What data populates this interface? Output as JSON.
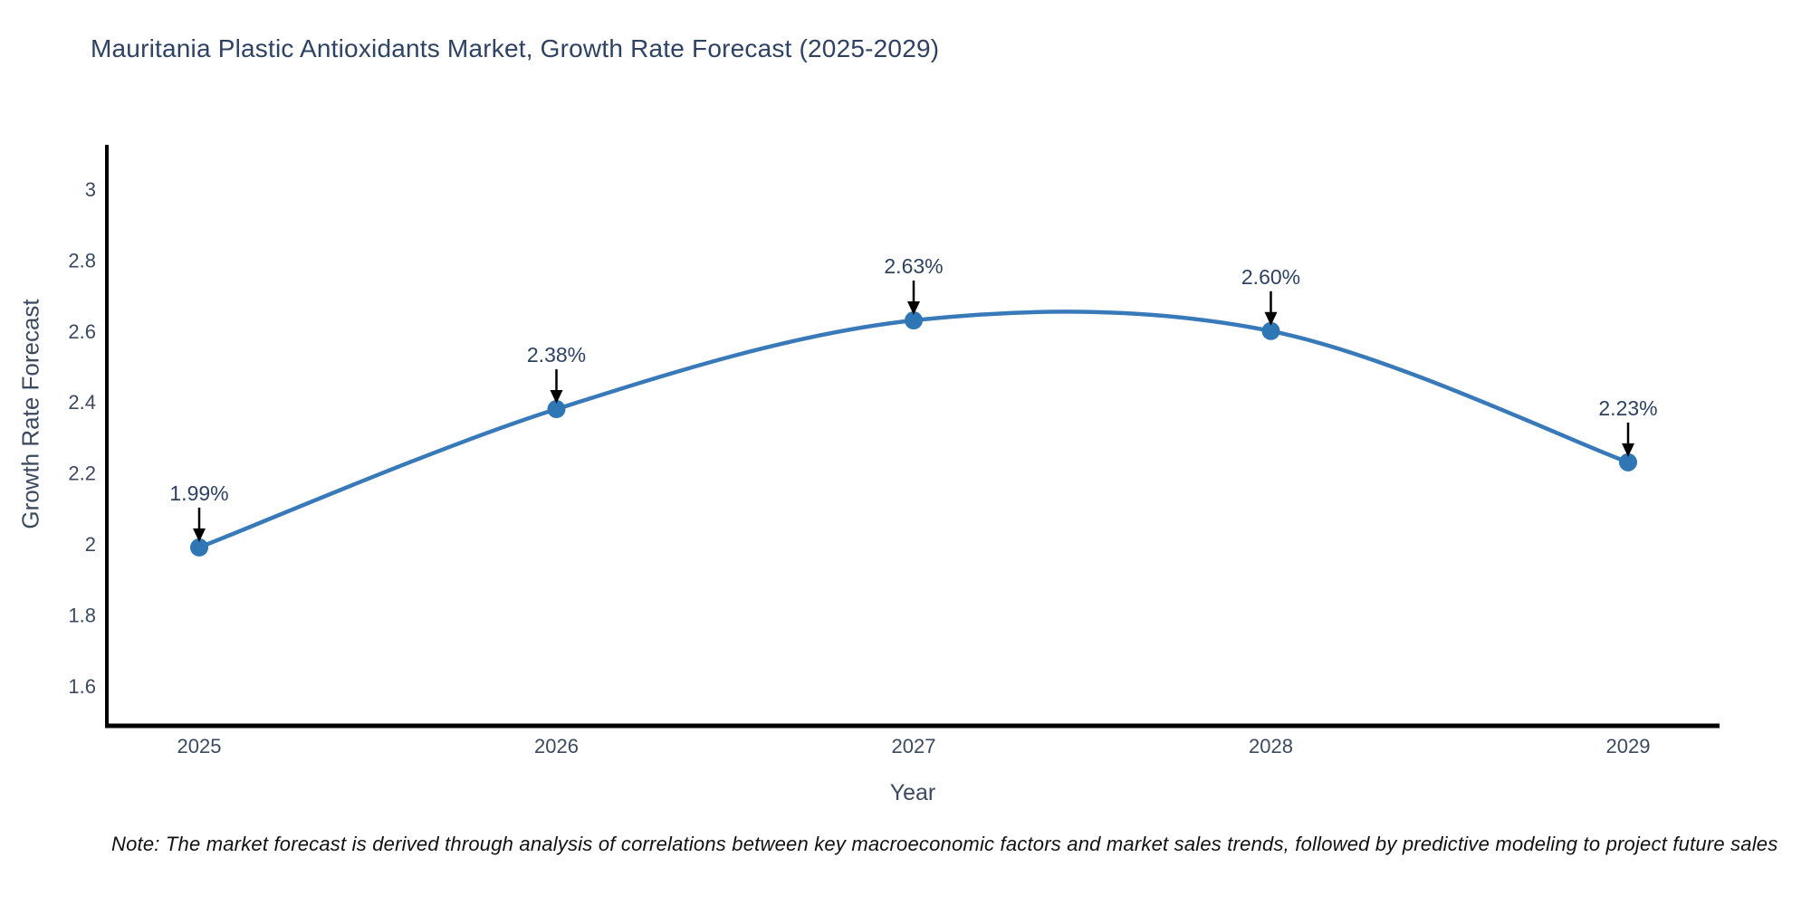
{
  "title": "Mauritania Plastic Antioxidants Market, Growth Rate Forecast (2025-2029)",
  "note": "Note: The market forecast is derived through analysis of correlations between key macroeconomic factors and market sales trends, followed by predictive modeling to project future sales",
  "chart_data": {
    "type": "line",
    "title": "Mauritania Plastic Antioxidants Market, Growth Rate Forecast (2025-2029)",
    "xlabel": "Year",
    "ylabel": "Growth Rate Forecast",
    "x": [
      2025,
      2026,
      2027,
      2028,
      2029
    ],
    "values": [
      1.99,
      2.38,
      2.63,
      2.6,
      2.23
    ],
    "point_labels": [
      "1.99%",
      "2.38%",
      "2.63%",
      "2.60%",
      "2.23%"
    ],
    "xtick_labels": [
      "2025",
      "2026",
      "2027",
      "2028",
      "2029"
    ],
    "yticks": [
      3,
      2.8,
      2.6,
      2.4,
      2.2,
      2,
      1.8,
      1.6
    ],
    "ytick_labels": [
      "3",
      "2.8",
      "2.6",
      "2.4",
      "2.2",
      "2",
      "1.8",
      "1.6"
    ],
    "ylim": [
      1.49,
      3.13
    ],
    "xlim": [
      2024.74,
      2029.26
    ],
    "grid": false,
    "legend": "none",
    "line_shape": "spline",
    "line_color": "#3879b9",
    "marker_color": "#2f76b4",
    "axis_color": "#000000",
    "tick_color": "#3b4a5f",
    "annotation_text_color": "#2e4263",
    "annotation_arrow_color": "#000000"
  }
}
